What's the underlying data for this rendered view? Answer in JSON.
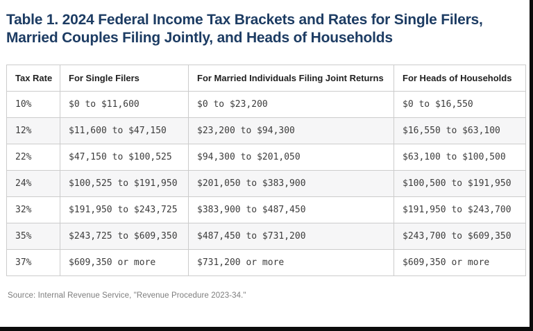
{
  "title": {
    "full": "Table 1. 2024 Federal Income Tax Brackets and Rates for Single Filers, Married Couples Filing Jointly, and Heads of Households",
    "line1": "Table 1. 2024 Federal Income Tax Brackets and Rates for Single Filers,",
    "line2": "Married Couples Filing Jointly, and Heads of Households"
  },
  "table": {
    "columns": [
      "Tax Rate",
      "For Single Filers",
      "For Married Individuals Filing Joint Returns",
      "For Heads of Households"
    ],
    "rows": [
      [
        "10%",
        "$0 to $11,600",
        "$0 to $23,200",
        "$0 to $16,550"
      ],
      [
        "12%",
        "$11,600 to $47,150",
        "$23,200 to $94,300",
        "$16,550 to $63,100"
      ],
      [
        "22%",
        "$47,150 to $100,525",
        "$94,300 to $201,050",
        "$63,100 to $100,500"
      ],
      [
        "24%",
        "$100,525 to $191,950",
        "$201,050 to $383,900",
        "$100,500 to $191,950"
      ],
      [
        "32%",
        "$191,950 to $243,725",
        "$383,900 to $487,450",
        "$191,950 to $243,700"
      ],
      [
        "35%",
        "$243,725 to $609,350",
        "$487,450 to $731,200",
        "$243,700 to $609,350"
      ],
      [
        "37%",
        "$609,350 or more",
        "$731,200 or more",
        "$609,350 or more"
      ]
    ]
  },
  "source": "Source: Internal Revenue Service, \"Revenue Procedure 2023-34.\"",
  "colors": {
    "title_navy": "#1d3c63",
    "row_stripe": "#f6f6f7",
    "cell_border": "#cccccc",
    "source_gray": "#7d7d7d",
    "frame_black": "#0b0b0b"
  }
}
